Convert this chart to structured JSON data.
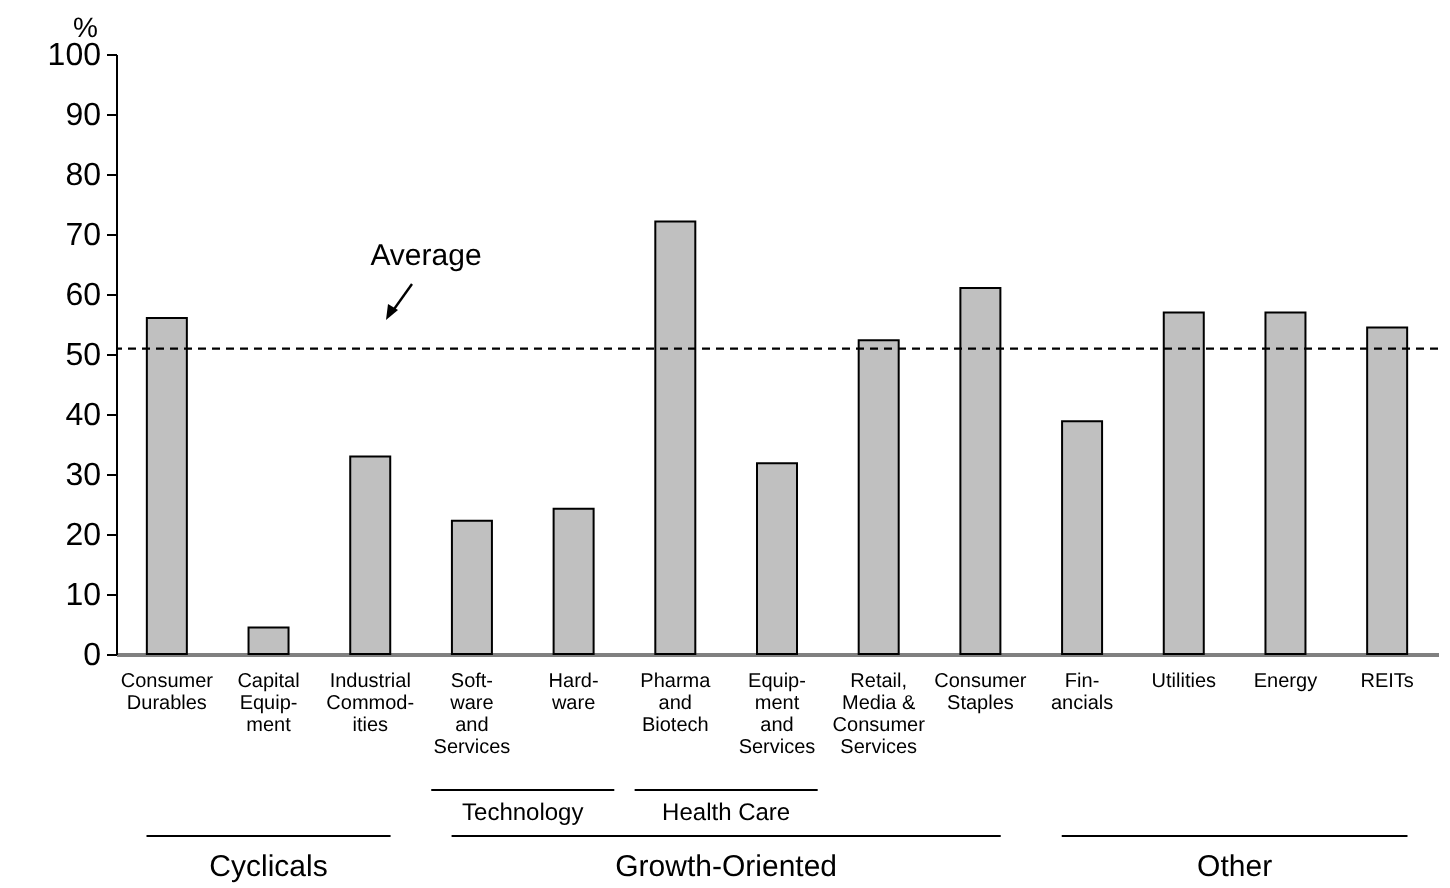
{
  "chart_data": {
    "type": "bar",
    "ylabel": "%",
    "categories": [
      "Consumer\nDurables",
      "Capital\nEquip-\nment",
      "Industrial\nCommod-\nities",
      "Soft-\nware\nand\nServices",
      "Hard-\nware",
      "Pharma\nand\nBiotech",
      "Equip-\nment\nand\nServices",
      "Retail,\nMedia &\nConsumer\nServices",
      "Consumer\nStaples",
      "Fin-\nancials",
      "Utilities",
      "Energy",
      "REITs"
    ],
    "values": [
      56.0,
      4.4,
      32.9,
      22.2,
      24.2,
      72.1,
      31.8,
      52.3,
      61.0,
      38.8,
      56.9,
      56.9,
      54.4
    ],
    "color": "#c0c0c0",
    "ylim": [
      0,
      100
    ],
    "yticks": [
      0,
      10,
      20,
      30,
      40,
      50,
      60,
      70,
      80,
      90,
      100
    ],
    "grid": false,
    "ref_lines": [
      {
        "axis": "y",
        "value": 50.9,
        "label": "Average",
        "line_style": "dashed",
        "color": "#000000"
      }
    ],
    "annotations": [
      "Technology",
      "Health Care",
      "Cyclicals",
      "Growth-Oriented",
      "Other"
    ]
  }
}
